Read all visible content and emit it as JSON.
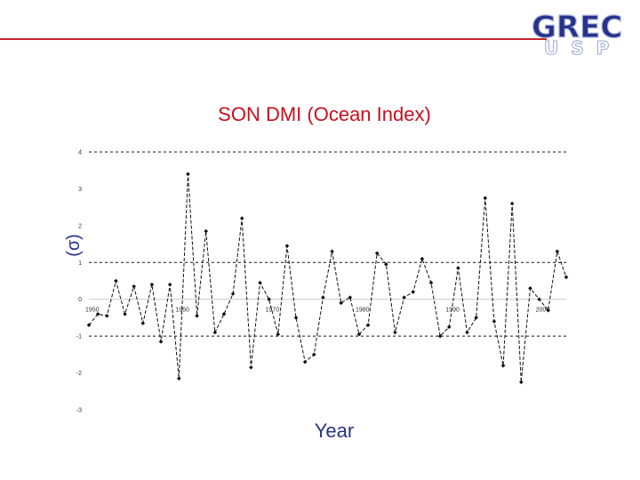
{
  "logo": {
    "brand": "GREC",
    "sub": "USP"
  },
  "chart_data": {
    "type": "line",
    "title": "SON DMI (Ocean Index)",
    "xlabel": "Year",
    "ylabel": "(σ)",
    "xlim": [
      1950,
      2003
    ],
    "ylim": [
      -3,
      4
    ],
    "x_ticks": [
      1950,
      1960,
      1970,
      1980,
      1990,
      2000
    ],
    "y_ticks": [
      4,
      3,
      2,
      1,
      0,
      -1,
      -2,
      -3
    ],
    "reference_lines": [
      -1,
      1,
      4
    ],
    "grid": false,
    "legend": "none",
    "series": [
      {
        "x": [
          1950,
          1951,
          1952,
          1953,
          1954,
          1955,
          1956,
          1957,
          1958,
          1959,
          1960,
          1961,
          1962,
          1963,
          1964,
          1965,
          1966,
          1967,
          1968,
          1969,
          1970,
          1971,
          1972,
          1973,
          1974,
          1975,
          1976,
          1977,
          1978,
          1979,
          1980,
          1981,
          1982,
          1983,
          1984,
          1985,
          1986,
          1987,
          1988,
          1989,
          1990,
          1991,
          1992,
          1993,
          1994,
          1995,
          1996,
          1997,
          1998,
          1999,
          2000,
          2001,
          2002,
          2003
        ],
        "values": [
          -0.7,
          -0.4,
          -0.45,
          0.5,
          -0.4,
          0.35,
          -0.65,
          0.4,
          -1.15,
          0.4,
          -2.15,
          3.4,
          -0.45,
          1.85,
          -0.9,
          -0.4,
          0.15,
          2.2,
          -1.85,
          0.45,
          0.0,
          -0.95,
          1.45,
          -0.5,
          -1.7,
          -1.5,
          0.05,
          1.3,
          -0.1,
          0.05,
          -0.95,
          -0.7,
          1.25,
          0.95,
          -0.9,
          0.05,
          0.2,
          1.1,
          0.45,
          -1.0,
          -0.75,
          0.85,
          -0.9,
          -0.5,
          2.75,
          -0.6,
          -1.8,
          2.6,
          -2.25,
          0.3,
          0.0,
          -0.3,
          1.3,
          0.6
        ]
      }
    ]
  }
}
